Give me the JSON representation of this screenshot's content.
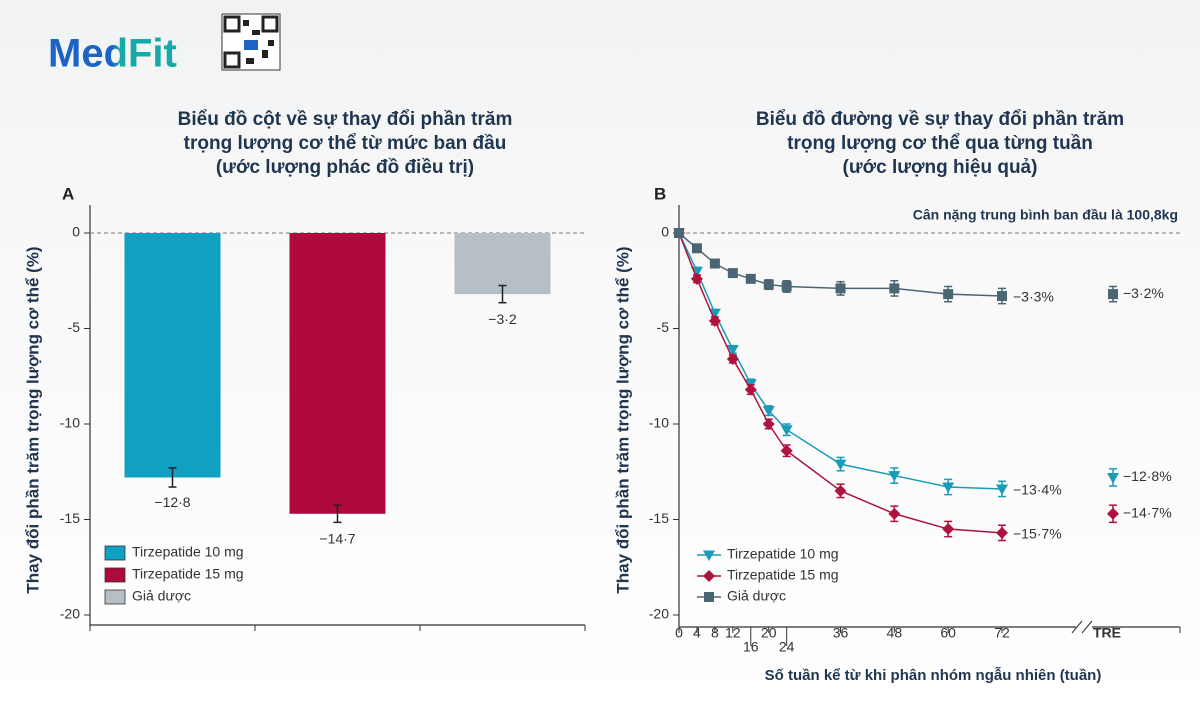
{
  "header": {
    "brand": "MedFit"
  },
  "chart_data": [
    {
      "type": "bar",
      "panel": "A",
      "title": [
        "Biểu đồ cột về sự thay đổi phần trăm",
        "trọng lượng cơ thể từ mức ban đầu",
        "(ước lượng phác đồ điều trị)"
      ],
      "y_label": "Thay đổi phần trăm trọng lượng cơ thể (%)",
      "categories": [
        "Tirzepatide 10 mg",
        "Tirzepatide 15 mg",
        "Giả dược"
      ],
      "colors": [
        "#0fa0c2",
        "#b0093b",
        "#b6bec6"
      ],
      "values": [
        -12.8,
        -14.7,
        -3.2
      ],
      "errors": [
        0.5,
        0.45,
        0.45
      ],
      "value_labels": [
        "−12·8",
        "−14·7",
        "−3·2"
      ],
      "ylim": [
        -20,
        0
      ],
      "yticks": [
        0,
        -5,
        -10,
        -15,
        -20
      ],
      "legend": "lower-left"
    },
    {
      "type": "line",
      "panel": "B",
      "title": [
        "Biểu đồ đường về sự thay đổi phần trăm",
        "trọng lượng cơ thể qua từng tuần",
        "(ước lượng hiệu quả)"
      ],
      "annotation": "Cân nặng trung bình ban đầu là 100,8kg",
      "x_label": "Số tuần kể từ khi phân nhóm ngẫu nhiên (tuần)",
      "y_label": "Thay đổi phần trăm trọng lượng cơ thể (%)",
      "x": [
        0,
        4,
        8,
        12,
        16,
        20,
        24,
        36,
        48,
        60,
        72
      ],
      "xlim": [
        0,
        72
      ],
      "xticks": [
        0,
        4,
        8,
        12,
        16,
        20,
        24,
        36,
        48,
        60,
        72
      ],
      "tre_tick": "TRE",
      "ylim": [
        -20,
        0
      ],
      "yticks": [
        0,
        -5,
        -10,
        -15,
        -20
      ],
      "legend": "lower-left",
      "series": [
        {
          "name": "Tirzepatide 10 mg",
          "color": "#1a9bb8",
          "marker": "triangle-down",
          "values": [
            0,
            -2.0,
            -4.2,
            -6.1,
            -7.9,
            -9.3,
            -10.3,
            -12.1,
            -12.7,
            -13.3,
            -13.4
          ],
          "errors": [
            0,
            0.2,
            0.2,
            0.2,
            0.25,
            0.25,
            0.3,
            0.35,
            0.4,
            0.4,
            0.4
          ],
          "end_label": "−13·4%",
          "tre_value": -12.8,
          "tre_error": 0.45,
          "tre_label": "−12·8%"
        },
        {
          "name": "Tirzepatide 15 mg",
          "color": "#b0123e",
          "marker": "diamond",
          "values": [
            0,
            -2.4,
            -4.6,
            -6.6,
            -8.2,
            -10.0,
            -11.4,
            -13.5,
            -14.7,
            -15.5,
            -15.7
          ],
          "errors": [
            0,
            0.2,
            0.2,
            0.2,
            0.25,
            0.25,
            0.3,
            0.35,
            0.4,
            0.4,
            0.4
          ],
          "end_label": "−15·7%",
          "tre_value": -14.7,
          "tre_error": 0.45,
          "tre_label": "−14·7%"
        },
        {
          "name": "Giả dược",
          "color": "#4b6673",
          "marker": "square",
          "values": [
            0,
            -0.8,
            -1.6,
            -2.1,
            -2.4,
            -2.7,
            -2.8,
            -2.9,
            -2.9,
            -3.2,
            -3.3
          ],
          "errors": [
            0,
            0.15,
            0.15,
            0.2,
            0.2,
            0.25,
            0.3,
            0.35,
            0.4,
            0.4,
            0.4
          ],
          "end_label": "−3·3%",
          "tre_value": -3.2,
          "tre_error": 0.4,
          "tre_label": "−3·2%"
        }
      ]
    }
  ]
}
